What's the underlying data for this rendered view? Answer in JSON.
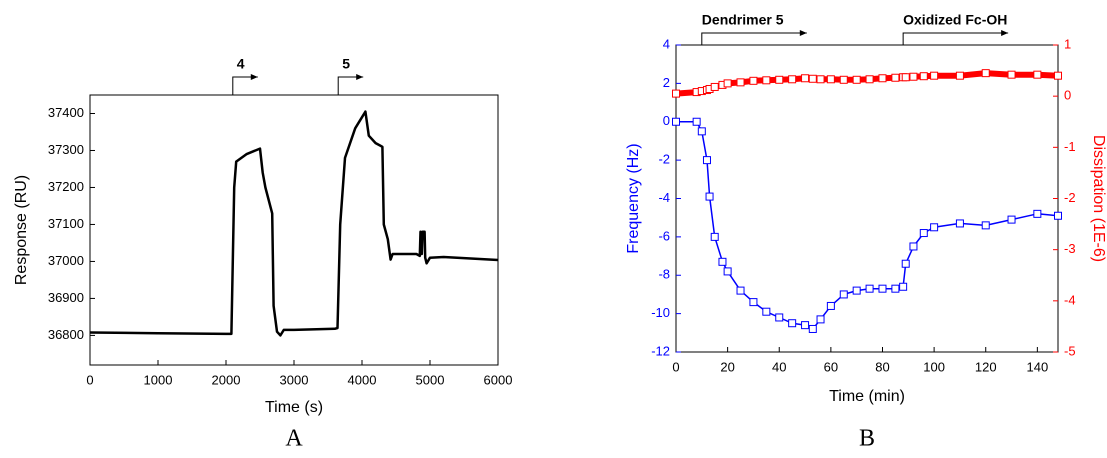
{
  "chart_data": [
    {
      "type": "line",
      "xlabel": "Time (s)",
      "ylabel": "Response (RU)",
      "panel": "A",
      "color": "#000000",
      "x": [
        0,
        1000,
        2000,
        2080,
        2120,
        2150,
        2300,
        2500,
        2540,
        2580,
        2680,
        2700,
        2750,
        2800,
        2850,
        3000,
        3600,
        3640,
        3680,
        3750,
        3900,
        4000,
        4050,
        4100,
        4200,
        4300,
        4320,
        4380,
        4420,
        4450,
        4800,
        4850,
        4860,
        4880,
        4890,
        4920,
        4930,
        4950,
        5000,
        5200,
        6000
      ],
      "values": [
        36808,
        36806,
        36804,
        36804,
        37200,
        37270,
        37290,
        37305,
        37240,
        37200,
        37130,
        36880,
        36810,
        36800,
        36815,
        36815,
        36818,
        36820,
        37100,
        37280,
        37360,
        37390,
        37405,
        37340,
        37320,
        37310,
        37100,
        37060,
        37005,
        37020,
        37020,
        37015,
        37080,
        37020,
        37080,
        37080,
        37010,
        36995,
        37010,
        37012,
        37004
      ],
      "xlim": [
        0,
        6000
      ],
      "xticks": [
        0,
        1000,
        2000,
        3000,
        4000,
        5000,
        6000
      ],
      "ylim": [
        36720,
        37450
      ],
      "yticks": [
        36800,
        36900,
        37000,
        37100,
        37200,
        37300,
        37400
      ],
      "annotations": [
        {
          "text": "4",
          "x": 2100
        },
        {
          "text": "5",
          "x": 3650
        }
      ]
    },
    {
      "type": "line",
      "xlabel": "Time (min)",
      "ylabel": "Frequency (Hz)",
      "y2label": "Dissipation (1E-6)",
      "panel": "B",
      "x": [
        0,
        8,
        10,
        12,
        13,
        15,
        18,
        20,
        25,
        30,
        35,
        40,
        45,
        50,
        53,
        56,
        60,
        65,
        70,
        75,
        80,
        85,
        88,
        89,
        92,
        96,
        100,
        110,
        120,
        130,
        140,
        148
      ],
      "series": [
        {
          "color": "#0000ff",
          "axis": "y",
          "values": [
            0,
            0,
            -0.5,
            -2,
            -3.9,
            -6,
            -7.3,
            -7.8,
            -8.8,
            -9.4,
            -9.9,
            -10.2,
            -10.5,
            -10.6,
            -10.8,
            -10.3,
            -9.6,
            -9.0,
            -8.8,
            -8.7,
            -8.7,
            -8.7,
            -8.6,
            -7.4,
            -6.5,
            -5.8,
            -5.5,
            -5.3,
            -5.4,
            -5.1,
            -4.8,
            -4.9
          ]
        },
        {
          "color": "#ff0000",
          "axis": "y2",
          "values": [
            0.05,
            0.08,
            0.1,
            0.12,
            0.14,
            0.18,
            0.22,
            0.25,
            0.27,
            0.3,
            0.31,
            0.32,
            0.33,
            0.35,
            0.34,
            0.33,
            0.33,
            0.32,
            0.32,
            0.33,
            0.35,
            0.36,
            0.37,
            0.37,
            0.38,
            0.39,
            0.4,
            0.4,
            0.45,
            0.42,
            0.42,
            0.4
          ]
        }
      ],
      "xlim": [
        0,
        148
      ],
      "xticks": [
        0,
        20,
        40,
        60,
        80,
        100,
        120,
        140
      ],
      "ylim": [
        -12,
        4
      ],
      "yticks": [
        -12,
        -10,
        -8,
        -6,
        -4,
        -2,
        0,
        2,
        4
      ],
      "y2lim": [
        -5,
        1
      ],
      "y2ticks": [
        -5,
        -4,
        -3,
        -2,
        -1,
        0,
        1
      ],
      "annotations": [
        {
          "text": "Dendrimer 5",
          "x": 10
        },
        {
          "text": "Oxidized Fc-OH",
          "x": 88
        }
      ]
    }
  ]
}
